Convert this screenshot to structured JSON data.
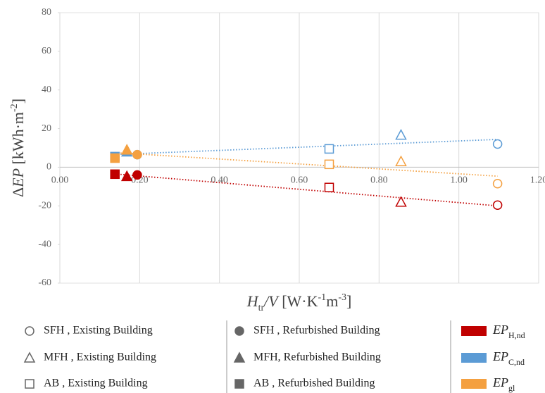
{
  "chart_data": {
    "type": "scatter",
    "x": [
      1.097,
      0.855,
      0.675,
      0.194,
      0.168,
      0.138
    ],
    "markers": [
      {
        "label": "SFH , Existing Building",
        "shape": "circle",
        "filled": false
      },
      {
        "label": "MFH , Existing Building",
        "shape": "triangle",
        "filled": false
      },
      {
        "label": "AB , Existing Building",
        "shape": "square",
        "filled": false
      },
      {
        "label": "SFH , Refurbished Building",
        "shape": "circle",
        "filled": true
      },
      {
        "label": "MFH, Refurbished Building",
        "shape": "triangle",
        "filled": true
      },
      {
        "label": "AB , Refurbished Building",
        "shape": "square",
        "filled": true
      }
    ],
    "series": [
      {
        "name": "EP",
        "name_sub": "H,nd",
        "color": "#c00000",
        "values": [
          -19.6,
          -18,
          -10.5,
          -4,
          -4.7,
          -3.6
        ]
      },
      {
        "name": "EP",
        "name_sub": "C,nd",
        "color": "#5b9bd5",
        "values": [
          12,
          16.7,
          9.5,
          6.5,
          8,
          5.5
        ]
      },
      {
        "name": "EP",
        "name_sub": "gl",
        "color": "#f4a040",
        "values": [
          -8.5,
          3,
          1.5,
          6.5,
          9,
          4.7
        ]
      }
    ],
    "trendlines": true,
    "xlabel": [
      {
        "text": "H",
        "style": "italic"
      },
      {
        "text": "tr",
        "style": "sub"
      },
      {
        "text": "/V",
        "style": "italic"
      },
      {
        "text": " [W·K"
      },
      {
        "text": "-1",
        "style": "sup"
      },
      {
        "text": "m"
      },
      {
        "text": "-3",
        "style": "sup"
      },
      {
        "text": "]"
      }
    ],
    "ylabel": [
      {
        "text": "Δ"
      },
      {
        "text": "EP",
        "style": "italic"
      },
      {
        "text": " [kWh·m"
      },
      {
        "text": "-2",
        "style": "sup"
      },
      {
        "text": "]"
      }
    ],
    "xlim": [
      0,
      1.2
    ],
    "ylim": [
      -60,
      80
    ],
    "xticks": [
      {
        "value": 0,
        "label": "0.00"
      },
      {
        "value": 0.2,
        "label": "0.20"
      },
      {
        "value": 0.4,
        "label": "0.40"
      },
      {
        "value": 0.6,
        "label": "0.60"
      },
      {
        "value": 0.8,
        "label": "0.80"
      },
      {
        "value": 1,
        "label": "1.00"
      },
      {
        "value": 1.2,
        "label": "1.20"
      }
    ],
    "yticks": [
      80,
      60,
      40,
      20,
      0,
      -20,
      -40,
      -60
    ],
    "grid": true
  }
}
